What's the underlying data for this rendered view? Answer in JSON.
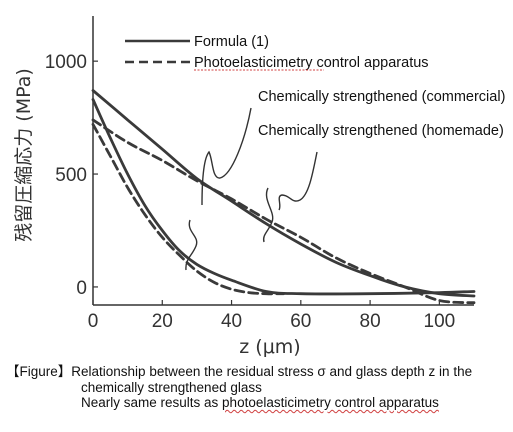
{
  "chart_data": {
    "type": "line",
    "xlabel": "z (μm)",
    "ylabel": "残留圧縮応力 (MPa)",
    "xlim": [
      0,
      110
    ],
    "ylim": [
      -80,
      1200
    ],
    "xticks": [
      "0",
      "20",
      "40",
      "60",
      "80",
      "100"
    ],
    "yticks": [
      "0",
      "500",
      "1000"
    ],
    "legend": {
      "position": "top-left",
      "entries": [
        {
          "label": "Formula (1)",
          "style": "solid"
        },
        {
          "label": "Photoelasticimetry control apparatus",
          "style": "dashed"
        }
      ]
    },
    "series": [
      {
        "group": "Chemically strengthened (commercial)",
        "method": "Formula (1)",
        "style": "solid",
        "x": [
          0,
          10,
          20,
          30,
          40,
          50,
          60,
          70,
          80,
          90,
          100,
          110
        ],
        "y": [
          870,
          740,
          610,
          480,
          380,
          280,
          190,
          110,
          50,
          0,
          -30,
          -40
        ]
      },
      {
        "group": "Chemically strengthened (commercial)",
        "method": "Photoelasticimetry control apparatus",
        "style": "dashed",
        "x": [
          0,
          10,
          20,
          30,
          40,
          50,
          60,
          70,
          80,
          90,
          100,
          110
        ],
        "y": [
          740,
          640,
          560,
          470,
          390,
          300,
          220,
          130,
          60,
          0,
          -60,
          -70
        ]
      },
      {
        "group": "Chemically strengthened (homemade)",
        "method": "Formula (1)",
        "style": "solid",
        "x": [
          0,
          5,
          10,
          15,
          20,
          25,
          30,
          35,
          40,
          50,
          60,
          80,
          100,
          110
        ],
        "y": [
          830,
          660,
          500,
          360,
          250,
          160,
          100,
          60,
          30,
          -20,
          -30,
          -30,
          -25,
          -20
        ]
      },
      {
        "group": "Chemically strengthened (homemade)",
        "method": "Photoelasticimetry control apparatus",
        "style": "dashed",
        "x": [
          0,
          5,
          10,
          15,
          20,
          25,
          30,
          35,
          40,
          45,
          50,
          55
        ],
        "y": [
          720,
          580,
          440,
          320,
          220,
          140,
          70,
          20,
          -10,
          -25,
          -30,
          -30
        ]
      }
    ],
    "annotations": [
      {
        "text": "Chemically strengthened (commercial)"
      },
      {
        "text": "Chemically strengthened (homemade)"
      }
    ]
  },
  "caption": {
    "prefix": "【Figure】",
    "line1": "Relationship between the residual stress σ and glass depth z in the",
    "line2": "chemically strengthened glass",
    "line3_plain": "Nearly same results as ",
    "line3_underlined": "photoelasticimetry control apparatus"
  },
  "colors": {
    "line": "#3a3a3a",
    "axis": "#333333",
    "wavy_underline": "#d04040"
  }
}
